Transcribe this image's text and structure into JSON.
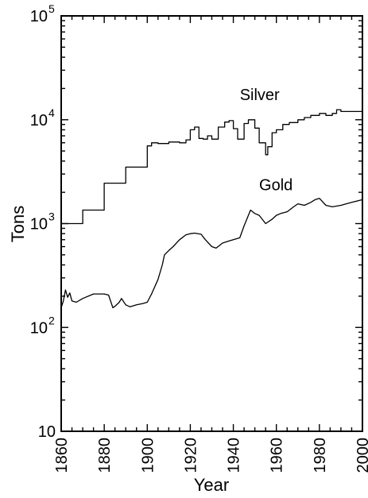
{
  "chart_data": {
    "type": "line",
    "xlabel": "Year",
    "ylabel": "Tons",
    "xlim": [
      1860,
      2000
    ],
    "ylim": [
      10,
      100000
    ],
    "yscale": "log",
    "grid": false,
    "x_ticks": [
      1860,
      1880,
      1900,
      1920,
      1940,
      1960,
      1980,
      2000
    ],
    "y_ticks": [
      {
        "value": 10,
        "base": "10",
        "exp": ""
      },
      {
        "value": 100,
        "base": "10",
        "exp": "2"
      },
      {
        "value": 1000,
        "base": "10",
        "exp": "3"
      },
      {
        "value": 10000,
        "base": "10",
        "exp": "4"
      },
      {
        "value": 100000,
        "base": "10",
        "exp": "5"
      }
    ],
    "series": [
      {
        "name": "Silver",
        "label_at": {
          "x": 1943,
          "y": 15500
        },
        "step": true,
        "x": [
          1860,
          1870,
          1880,
          1890,
          1900,
          1902,
          1905,
          1910,
          1915,
          1918,
          1920,
          1922,
          1924,
          1926,
          1928,
          1930,
          1933,
          1936,
          1938,
          1940,
          1942,
          1945,
          1947,
          1950,
          1952,
          1955,
          1956,
          1958,
          1960,
          1963,
          1966,
          1970,
          1973,
          1976,
          1980,
          1983,
          1986,
          1988,
          1990,
          1995,
          2000
        ],
        "y": [
          1000,
          1350,
          2450,
          3500,
          5600,
          6000,
          5900,
          6100,
          6000,
          6400,
          8000,
          8500,
          6600,
          6500,
          7000,
          6500,
          8500,
          9500,
          9800,
          8200,
          6500,
          9200,
          10000,
          8300,
          6000,
          4600,
          5500,
          7500,
          8000,
          9000,
          9400,
          10000,
          10500,
          11000,
          11500,
          11000,
          11500,
          12500,
          12000,
          12000,
          12500
        ]
      },
      {
        "name": "Gold",
        "label_at": {
          "x": 1952,
          "y": 2100
        },
        "step": false,
        "x": [
          1860,
          1861,
          1862,
          1863,
          1864,
          1865,
          1867,
          1870,
          1875,
          1880,
          1882,
          1884,
          1885,
          1887,
          1888,
          1890,
          1892,
          1895,
          1898,
          1900,
          1902,
          1905,
          1907,
          1908,
          1910,
          1912,
          1915,
          1918,
          1920,
          1922,
          1925,
          1927,
          1930,
          1932,
          1935,
          1938,
          1940,
          1943,
          1945,
          1948,
          1950,
          1952,
          1955,
          1958,
          1960,
          1962,
          1965,
          1968,
          1970,
          1973,
          1976,
          1978,
          1980,
          1983,
          1986,
          1990,
          1995,
          2000
        ],
        "y": [
          155,
          180,
          230,
          195,
          215,
          180,
          175,
          190,
          210,
          210,
          205,
          155,
          160,
          175,
          190,
          165,
          158,
          165,
          170,
          175,
          210,
          290,
          400,
          500,
          550,
          600,
          700,
          780,
          800,
          810,
          790,
          700,
          600,
          580,
          650,
          680,
          700,
          730,
          950,
          1350,
          1250,
          1200,
          1000,
          1100,
          1200,
          1250,
          1300,
          1450,
          1550,
          1500,
          1600,
          1700,
          1750,
          1500,
          1450,
          1500,
          1600,
          1700
        ]
      }
    ]
  }
}
